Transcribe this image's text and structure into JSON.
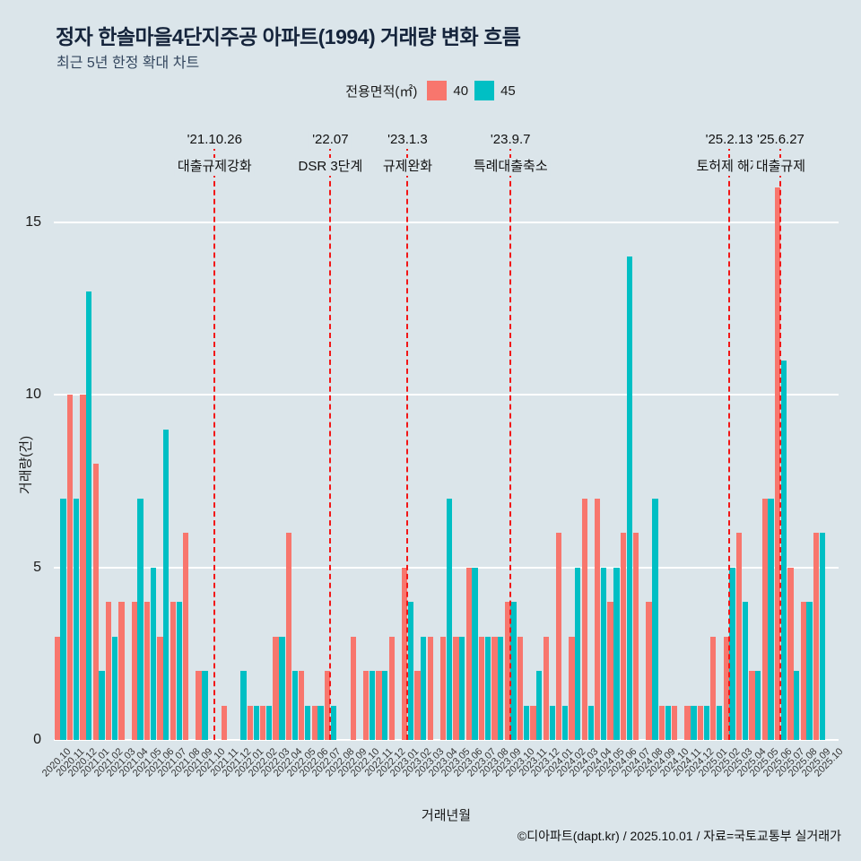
{
  "header": {
    "title": "정자 한솔마을4단지주공 아파트(1994) 거래량 변화 흐름",
    "subtitle": "최근 5년 한정 확대 차트"
  },
  "legend": {
    "label": "전용면적(㎡)",
    "items": [
      {
        "name": "40",
        "color": "#F8766D"
      },
      {
        "name": "45",
        "color": "#00BFC4"
      }
    ]
  },
  "chart_data": {
    "type": "bar",
    "title": "정자 한솔마을4단지주공 아파트(1994) 거래량 변화 흐름",
    "subtitle": "최근 5년 한정 확대 차트",
    "xlabel": "거래년월",
    "ylabel": "거래량(건)",
    "ylim": [
      0,
      16
    ],
    "yticks": [
      0,
      5,
      10,
      15
    ],
    "grid": "horizontal-white",
    "legend_position": "top-center",
    "background_color": "#dbe5ea",
    "event_line_color": "#f21616",
    "categories": [
      "2020.10",
      "2020.11",
      "2020.12",
      "2021.01",
      "2021.02",
      "2021.03",
      "2021.04",
      "2021.05",
      "2021.06",
      "2021.07",
      "2021.08",
      "2021.09",
      "2021.10",
      "2021.11",
      "2021.12",
      "2022.01",
      "2022.02",
      "2022.03",
      "2022.04",
      "2022.05",
      "2022.06",
      "2022.07",
      "2022.08",
      "2022.09",
      "2022.10",
      "2022.11",
      "2022.12",
      "2023.01",
      "2023.02",
      "2023.03",
      "2023.04",
      "2023.05",
      "2023.06",
      "2023.07",
      "2023.08",
      "2023.09",
      "2023.10",
      "2023.11",
      "2023.12",
      "2024.01",
      "2024.02",
      "2024.03",
      "2024.04",
      "2024.05",
      "2024.06",
      "2024.07",
      "2024.08",
      "2024.09",
      "2024.10",
      "2024.11",
      "2024.12",
      "2025.01",
      "2025.02",
      "2025.03",
      "2025.04",
      "2025.05",
      "2025.06",
      "2025.07",
      "2025.08",
      "2025.09",
      "2025.10"
    ],
    "series": [
      {
        "name": "40",
        "color": "#F8766D",
        "values": [
          3,
          10,
          10,
          8,
          4,
          4,
          4,
          4,
          3,
          4,
          6,
          2,
          0,
          1,
          0,
          1,
          1,
          3,
          6,
          2,
          1,
          2,
          0,
          3,
          2,
          2,
          3,
          5,
          2,
          3,
          3,
          3,
          5,
          3,
          3,
          4,
          3,
          1,
          3,
          6,
          3,
          7,
          7,
          4,
          6,
          6,
          4,
          1,
          1,
          1,
          1,
          3,
          3,
          6,
          2,
          7,
          16,
          5,
          4,
          6,
          0
        ]
      },
      {
        "name": "45",
        "color": "#00BFC4",
        "values": [
          7,
          7,
          13,
          2,
          3,
          0,
          7,
          5,
          9,
          4,
          0,
          2,
          0,
          0,
          2,
          1,
          1,
          3,
          2,
          1,
          1,
          1,
          0,
          0,
          2,
          2,
          0,
          4,
          3,
          0,
          7,
          3,
          5,
          3,
          3,
          4,
          1,
          2,
          1,
          1,
          5,
          1,
          5,
          5,
          14,
          0,
          7,
          1,
          0,
          1,
          1,
          1,
          5,
          4,
          2,
          7,
          11,
          2,
          4,
          6,
          0
        ]
      }
    ],
    "events": [
      {
        "x": "2021.10",
        "date": "'21.10.26",
        "label": "대출규제강화"
      },
      {
        "x": "2022.07",
        "date": "'22.07",
        "label": "DSR 3단계"
      },
      {
        "x": "2023.01",
        "date": "'23.1.3",
        "label": "규제완화"
      },
      {
        "x": "2023.09",
        "date": "'23.9.7",
        "label": "특례대출축소"
      },
      {
        "x": "2025.02",
        "date": "'25.2.13",
        "label": "토허제 해제"
      },
      {
        "x": "2025.06",
        "date": "'25.6.27",
        "label": "대출규제"
      }
    ]
  },
  "footer": {
    "credit": "©디아파트(dapt.kr) / 2025.10.01 / 자료=국토교통부 실거래가"
  }
}
